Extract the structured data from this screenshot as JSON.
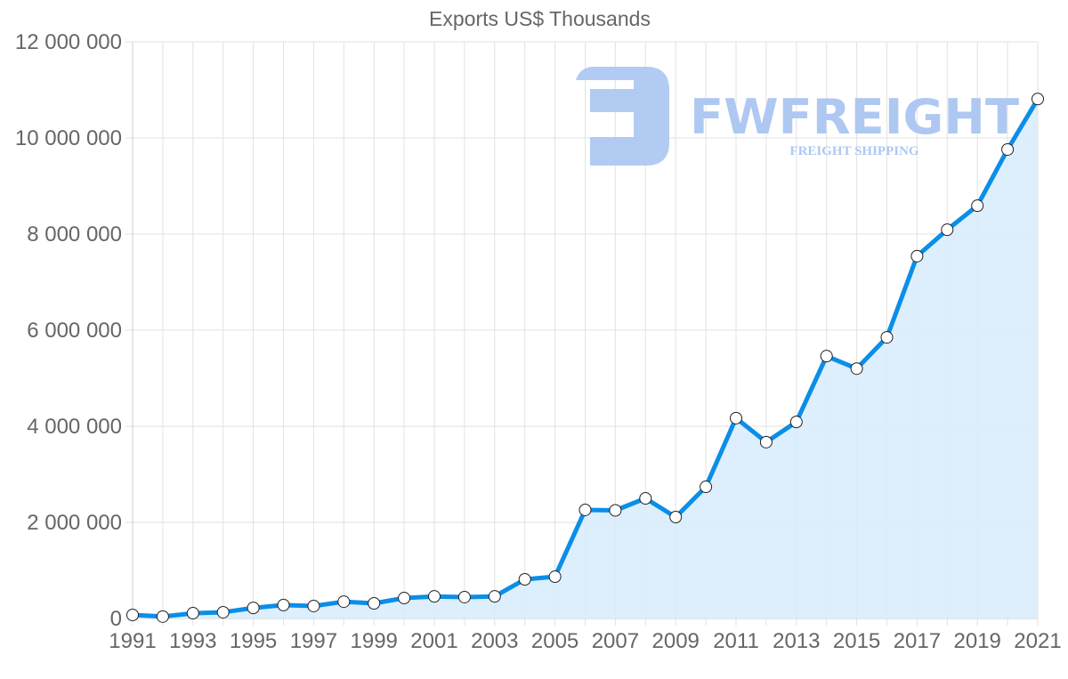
{
  "watermark": {
    "brand": "FWFREIGHT",
    "tagline": "FREIGHT SHIPPING",
    "color": "#aec8f2"
  },
  "colors": {
    "line": "#0b8ee8",
    "fill": "#d9ecfc",
    "grid": "#e2e2e2",
    "text": "#666666",
    "point_fill": "#ffffff",
    "point_stroke": "#222222"
  },
  "chart_data": {
    "type": "area",
    "title": "Exports US$ Thousands",
    "xlabel": "",
    "ylabel": "",
    "ylim": [
      0,
      12000000
    ],
    "grid": true,
    "legend": "none",
    "y_ticks": [
      "0",
      "2 000 000",
      "4 000 000",
      "6 000 000",
      "8 000 000",
      "10 000 000",
      "12 000 000"
    ],
    "x_ticks": [
      "1991",
      "1993",
      "1995",
      "1997",
      "1999",
      "2001",
      "2003",
      "2005",
      "2007",
      "2009",
      "2011",
      "2013",
      "2015",
      "2017",
      "2019",
      "2021"
    ],
    "x": [
      1991,
      1992,
      1993,
      1994,
      1995,
      1996,
      1997,
      1998,
      1999,
      2000,
      2001,
      2002,
      2003,
      2004,
      2005,
      2006,
      2007,
      2008,
      2009,
      2010,
      2011,
      2012,
      2013,
      2014,
      2015,
      2016,
      2017,
      2018,
      2019,
      2020,
      2021
    ],
    "series": [
      {
        "name": "Exports US$ Thousands",
        "values": [
          74000,
          40000,
          110000,
          130000,
          220000,
          280000,
          260000,
          350000,
          315000,
          425000,
          460000,
          445000,
          460000,
          815000,
          870000,
          2260000,
          2250000,
          2500000,
          2110000,
          2740000,
          4170000,
          3670000,
          4090000,
          5460000,
          5200000,
          5850000,
          7540000,
          8090000,
          8590000,
          9760000,
          10810000
        ]
      }
    ]
  }
}
